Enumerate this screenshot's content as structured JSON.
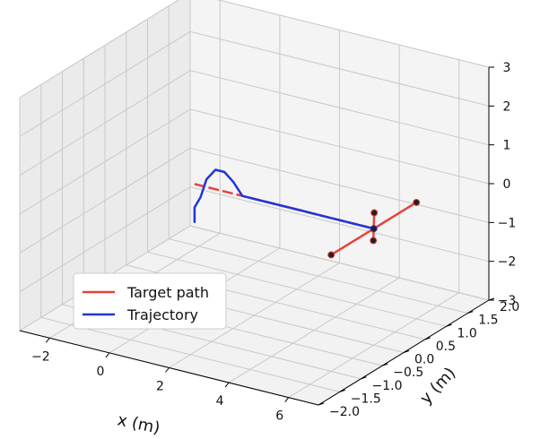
{
  "chart_data": {
    "type": "line",
    "projection": "3d",
    "xlabel": "x (m)",
    "ylabel": "y (m)",
    "zlabel": "",
    "xlim": [
      -3,
      7
    ],
    "ylim": [
      -2,
      2
    ],
    "zlim": [
      -3,
      3
    ],
    "x_ticks": [
      "−2",
      "0",
      "2",
      "4",
      "6"
    ],
    "y_ticks": [
      "−2.0",
      "−1.5",
      "−1.0",
      "−0.5",
      "0.0",
      "0.5",
      "1.0",
      "1.5",
      "2.0"
    ],
    "z_ticks": [
      "−3",
      "−2",
      "−1",
      "0",
      "1",
      "2",
      "3"
    ],
    "grid": true,
    "legend_position": "lower-left",
    "series": [
      {
        "name": "Target path",
        "color": "#e8413a",
        "points": [
          {
            "x": 0.0,
            "y": 0.0,
            "z": 0.0
          },
          {
            "x": 1.0,
            "y": 0.0,
            "z": 0.0
          },
          {
            "x": 2.0,
            "y": 0.0,
            "z": 0.0
          },
          {
            "x": 3.0,
            "y": 0.0,
            "z": 0.0
          },
          {
            "x": 4.0,
            "y": 0.0,
            "z": 0.0
          },
          {
            "x": 5.0,
            "y": 0.0,
            "z": 0.0
          },
          {
            "x": 6.0,
            "y": 0.0,
            "z": 0.0
          }
        ],
        "cross": [
          {
            "x": 6.0,
            "y": -1.0,
            "z": 0.0
          },
          {
            "x": 6.0,
            "y": 1.0,
            "z": 0.0
          },
          {
            "x": 5.7,
            "y": 0.2,
            "z": -0.5
          },
          {
            "x": 6.3,
            "y": -0.2,
            "z": 0.6
          }
        ]
      },
      {
        "name": "Trajectory",
        "color": "#2035d8",
        "points": [
          {
            "x": 0.0,
            "y": 0.0,
            "z": -1.0
          },
          {
            "x": 0.0,
            "y": 0.0,
            "z": -0.6
          },
          {
            "x": 0.2,
            "y": 0.0,
            "z": -0.3
          },
          {
            "x": 0.4,
            "y": 0.0,
            "z": 0.2
          },
          {
            "x": 0.7,
            "y": 0.0,
            "z": 0.5
          },
          {
            "x": 1.0,
            "y": 0.0,
            "z": 0.5
          },
          {
            "x": 1.3,
            "y": 0.0,
            "z": 0.3
          },
          {
            "x": 1.6,
            "y": 0.0,
            "z": 0.0
          },
          {
            "x": 2.5,
            "y": 0.0,
            "z": 0.0
          },
          {
            "x": 3.5,
            "y": 0.0,
            "z": 0.0
          },
          {
            "x": 4.5,
            "y": 0.0,
            "z": 0.0
          },
          {
            "x": 5.5,
            "y": 0.0,
            "z": 0.0
          },
          {
            "x": 6.0,
            "y": 0.0,
            "z": 0.0
          }
        ]
      }
    ]
  }
}
